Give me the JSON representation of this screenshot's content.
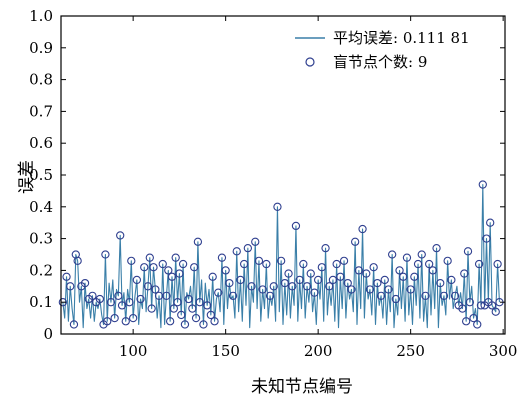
{
  "chart_data": {
    "type": "line",
    "title": "",
    "xlabel": "未知节点编号",
    "ylabel": "误差",
    "xlim": [
      61,
      301
    ],
    "ylim": [
      0,
      1.0
    ],
    "xticks": [
      100,
      150,
      200,
      250,
      300
    ],
    "xtick_labels": [
      "100",
      "150",
      "200",
      "250",
      "300"
    ],
    "yticks": [
      0,
      0.1,
      0.2,
      0.3,
      0.4,
      0.5,
      0.6,
      0.7,
      0.8,
      0.9,
      1.0
    ],
    "ytick_labels": [
      "0",
      "0.1",
      "0.2",
      "0.3",
      "0.4",
      "0.5",
      "0.6",
      "0.7",
      "0.8",
      "0.9",
      "1.0"
    ],
    "grid": false,
    "legend_position": "top-right",
    "legend": [
      {
        "label": "平均误差: 0.111 81",
        "style": "line"
      },
      {
        "label": "盲节点个数: 9",
        "style": "marker"
      }
    ],
    "colors": {
      "line": "#3a7fa8",
      "marker": "#2f3f8f"
    },
    "series": [
      {
        "x_start": 62,
        "x_step": 1,
        "values": [
          0.1,
          0.05,
          0.18,
          0.04,
          0.15,
          0.08,
          0.03,
          0.25,
          0.23,
          0.1,
          0.15,
          0.02,
          0.16,
          0.08,
          0.11,
          0.05,
          0.12,
          0.04,
          0.1,
          0.08,
          0.11,
          0.06,
          0.03,
          0.25,
          0.04,
          0.16,
          0.1,
          0.17,
          0.05,
          0.14,
          0.12,
          0.31,
          0.09,
          0.13,
          0.04,
          0.14,
          0.1,
          0.23,
          0.05,
          0.12,
          0.17,
          0.03,
          0.11,
          0.08,
          0.21,
          0.07,
          0.15,
          0.24,
          0.08,
          0.21,
          0.14,
          0.05,
          0.12,
          0.02,
          0.22,
          0.03,
          0.12,
          0.2,
          0.04,
          0.18,
          0.08,
          0.24,
          0.1,
          0.19,
          0.06,
          0.22,
          0.03,
          0.13,
          0.11,
          0.15,
          0.08,
          0.21,
          0.05,
          0.29,
          0.1,
          0.17,
          0.03,
          0.16,
          0.09,
          0.14,
          0.06,
          0.18,
          0.04,
          0.11,
          0.13,
          0.07,
          0.24,
          0.03,
          0.2,
          0.08,
          0.16,
          0.11,
          0.12,
          0.05,
          0.26,
          0.07,
          0.17,
          0.04,
          0.22,
          0.09,
          0.27,
          0.02,
          0.15,
          0.1,
          0.29,
          0.08,
          0.23,
          0.04,
          0.14,
          0.08,
          0.22,
          0.05,
          0.12,
          0.09,
          0.15,
          0.04,
          0.4,
          0.07,
          0.23,
          0.03,
          0.16,
          0.06,
          0.19,
          0.05,
          0.15,
          0.09,
          0.34,
          0.04,
          0.17,
          0.08,
          0.22,
          0.05,
          0.15,
          0.1,
          0.19,
          0.07,
          0.13,
          0.03,
          0.17,
          0.11,
          0.21,
          0.04,
          0.27,
          0.06,
          0.15,
          0.09,
          0.17,
          0.04,
          0.22,
          0.02,
          0.18,
          0.08,
          0.23,
          0.05,
          0.16,
          0.11,
          0.14,
          0.07,
          0.29,
          0.03,
          0.2,
          0.08,
          0.33,
          0.05,
          0.19,
          0.11,
          0.14,
          0.06,
          0.21,
          0.03,
          0.16,
          0.09,
          0.12,
          0.05,
          0.17,
          0.03,
          0.14,
          0.07,
          0.25,
          0.02,
          0.11,
          0.06,
          0.2,
          0.08,
          0.18,
          0.04,
          0.24,
          0.06,
          0.14,
          0.03,
          0.18,
          0.09,
          0.22,
          0.05,
          0.25,
          0.04,
          0.12,
          0.02,
          0.22,
          0.06,
          0.2,
          0.08,
          0.27,
          0.02,
          0.16,
          0.09,
          0.12,
          0.06,
          0.23,
          0.11,
          0.17,
          0.08,
          0.12,
          0.15,
          0.09,
          0.13,
          0.08,
          0.19,
          0.04,
          0.26,
          0.1,
          0.15,
          0.05,
          0.08,
          0.03,
          0.22,
          0.09,
          0.47,
          0.09,
          0.3,
          0.1,
          0.35,
          0.09,
          0.08,
          0.07,
          0.22,
          0.1
        ]
      }
    ]
  }
}
